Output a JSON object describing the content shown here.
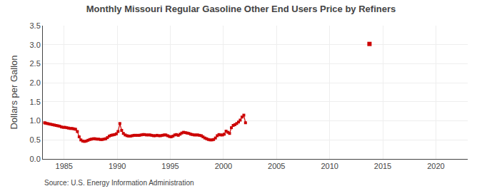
{
  "chart_data": {
    "type": "line",
    "title": "Monthly Missouri Regular Gasoline Other End Users Price by Refiners",
    "ylabel": "Dollars per Gallon",
    "annotations": [
      "Source: U.S. Energy Information Administration"
    ],
    "xlim": [
      1983,
      2023
    ],
    "ylim": [
      0.0,
      3.5
    ],
    "xticks": [
      1985,
      1990,
      1995,
      2000,
      2005,
      2010,
      2015,
      2020
    ],
    "yticks": [
      {
        "value": 0.0,
        "label": "0.0"
      },
      0.5,
      {
        "value": 1.0,
        "label": "1.0"
      },
      1.5,
      {
        "value": 2.0,
        "label": "2.0"
      },
      2.5,
      {
        "value": 3.0,
        "label": "3.0"
      },
      3.5
    ],
    "grid": true,
    "series": [
      {
        "color": "#cc0000",
        "marker": "square",
        "line_style": "solid",
        "x": [
          1983.17,
          1983.25,
          1983.42,
          1983.58,
          1983.75,
          1983.92,
          1984.08,
          1984.25,
          1984.42,
          1984.58,
          1984.75,
          1984.92,
          1985.08,
          1985.25,
          1985.42,
          1985.58,
          1985.75,
          1985.92,
          1986.08,
          1986.25,
          1986.42,
          1986.58,
          1986.75,
          1986.92,
          1987.08,
          1987.25,
          1987.42,
          1987.58,
          1987.75,
          1987.92,
          1988.08,
          1988.25,
          1988.42,
          1988.58,
          1988.75,
          1988.92,
          1989.08,
          1989.25,
          1989.42,
          1989.58,
          1989.75,
          1989.92,
          1990.08,
          1990.25,
          1990.42,
          1990.58,
          1990.75,
          1990.92,
          1991.08,
          1991.25,
          1991.42,
          1991.58,
          1991.75,
          1991.92,
          1992.08,
          1992.25,
          1992.42,
          1992.58,
          1992.75,
          1992.92,
          1993.08,
          1993.25,
          1993.42,
          1993.58,
          1993.75,
          1993.92,
          1994.08,
          1994.25,
          1994.42,
          1994.58,
          1994.75,
          1994.92,
          1995.08,
          1995.25,
          1995.42,
          1995.58,
          1995.75,
          1995.92,
          1996.08,
          1996.25,
          1996.42,
          1996.58,
          1996.75,
          1996.92,
          1997.08,
          1997.25,
          1997.42,
          1997.58,
          1997.75,
          1997.92,
          1998.08,
          1998.25,
          1998.42,
          1998.58,
          1998.75,
          1998.92,
          1999.08,
          1999.25,
          1999.42,
          1999.58,
          1999.75,
          1999.92,
          2000.08,
          2000.25,
          2000.42,
          2000.58,
          2000.75,
          2000.92,
          2001.08,
          2001.25,
          2001.42,
          2001.58,
          2001.75,
          2001.92,
          2002.08
        ],
        "values": [
          0.95,
          0.94,
          0.93,
          0.92,
          0.91,
          0.9,
          0.89,
          0.88,
          0.87,
          0.86,
          0.84,
          0.83,
          0.83,
          0.82,
          0.81,
          0.8,
          0.8,
          0.79,
          0.78,
          0.72,
          0.58,
          0.5,
          0.47,
          0.46,
          0.47,
          0.49,
          0.51,
          0.52,
          0.53,
          0.53,
          0.52,
          0.52,
          0.51,
          0.51,
          0.52,
          0.53,
          0.56,
          0.6,
          0.62,
          0.63,
          0.64,
          0.66,
          0.72,
          0.93,
          0.75,
          0.67,
          0.63,
          0.61,
          0.6,
          0.6,
          0.61,
          0.62,
          0.62,
          0.62,
          0.62,
          0.63,
          0.64,
          0.64,
          0.63,
          0.63,
          0.63,
          0.62,
          0.61,
          0.61,
          0.62,
          0.61,
          0.61,
          0.62,
          0.63,
          0.63,
          0.61,
          0.59,
          0.58,
          0.6,
          0.63,
          0.64,
          0.62,
          0.65,
          0.68,
          0.7,
          0.69,
          0.68,
          0.67,
          0.65,
          0.64,
          0.63,
          0.63,
          0.63,
          0.62,
          0.61,
          0.58,
          0.55,
          0.53,
          0.51,
          0.5,
          0.5,
          0.51,
          0.55,
          0.61,
          0.64,
          0.63,
          0.63,
          0.65,
          0.73,
          0.7,
          0.67,
          0.82,
          0.88,
          0.9,
          0.93,
          0.97,
          1.02,
          1.1,
          1.15,
          0.95
        ]
      },
      {
        "color": "#cc0000",
        "marker": "square",
        "line_style": "none",
        "x": [
          2013.75
        ],
        "values": [
          3.02
        ]
      }
    ]
  }
}
